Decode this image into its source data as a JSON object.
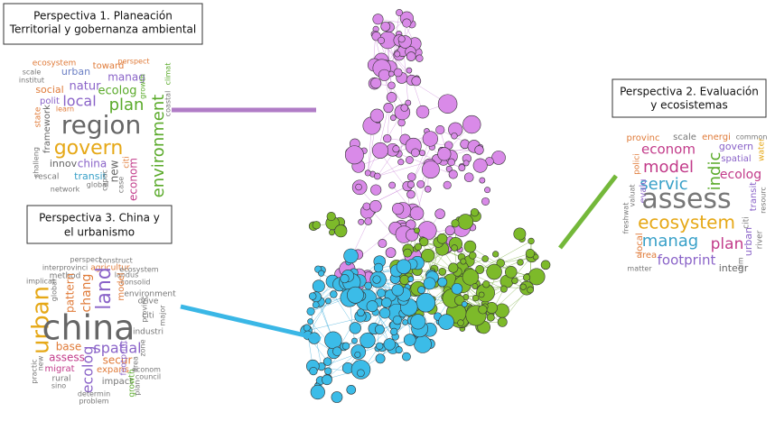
{
  "perspectives": [
    {
      "title": [
        "Perspectiva 1. Planeación",
        "Territorial y gobernanza ambiental"
      ],
      "words": [
        "ecosystem",
        "perspect",
        "scale",
        "urban",
        "toward",
        "institut",
        "manag",
        "growth",
        "climat",
        "social",
        "natur",
        "ecolog",
        "local",
        "plan",
        "polit",
        "learn",
        "state",
        "framework",
        "region",
        "environment",
        "coastal",
        "govern",
        "challeng",
        "innov",
        "china",
        "citi",
        "new",
        "rescal",
        "transit",
        "econom",
        "capac",
        "case",
        "global",
        "network"
      ]
    },
    {
      "title": [
        "Perspectiva 2. Evaluación",
        "y ecosistemas"
      ],
      "words": [
        "provinc",
        "scale",
        "energi",
        "common",
        "econom",
        "govern",
        "water",
        "polici",
        "model",
        "indic",
        "spatial",
        "servic",
        "ecolog",
        "valuat",
        "evalu",
        "transit",
        "resourc",
        "assess",
        "freshwat",
        "ecosystem",
        "citi",
        "manag",
        "plan",
        "urban",
        "local",
        "river",
        "area",
        "footprint",
        "rim",
        "integr",
        "matter"
      ]
    },
    {
      "title": [
        "Perspectiva 3. China y",
        "el urbanismo"
      ],
      "words": [
        "perspect",
        "construct",
        "interprovinci",
        "agricultur",
        "ecosystem",
        "method",
        "landus",
        "consolid",
        "implicat",
        "global",
        "pattern",
        "chang",
        "land",
        "model",
        "environment",
        "drive",
        "urban",
        "china",
        "spatial",
        "citi",
        "industri",
        "base",
        "assess",
        "secur",
        "migrat",
        "expans",
        "ecolog",
        "impact",
        "rural",
        "econom",
        "sino",
        "growth",
        "determin",
        "problem",
        "footprint",
        "council",
        "area",
        "plan",
        "zone",
        "major",
        "new",
        "practic",
        "provinc"
      ]
    }
  ]
}
